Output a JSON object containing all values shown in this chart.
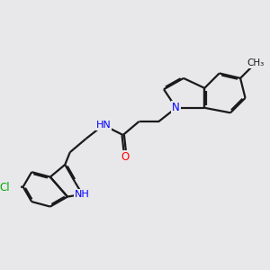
{
  "bg_color": "#e8e8eb",
  "bond_color": "#1a1a1a",
  "atom_colors": {
    "N": "#0000ff",
    "O": "#ff0000",
    "Cl": "#00aa00",
    "C": "#1a1a1a"
  },
  "line_width": 1.6,
  "dbo": 0.055,
  "figsize": [
    3.0,
    3.0
  ],
  "dpi": 100,
  "xlim": [
    0,
    10
  ],
  "ylim": [
    0,
    10
  ]
}
